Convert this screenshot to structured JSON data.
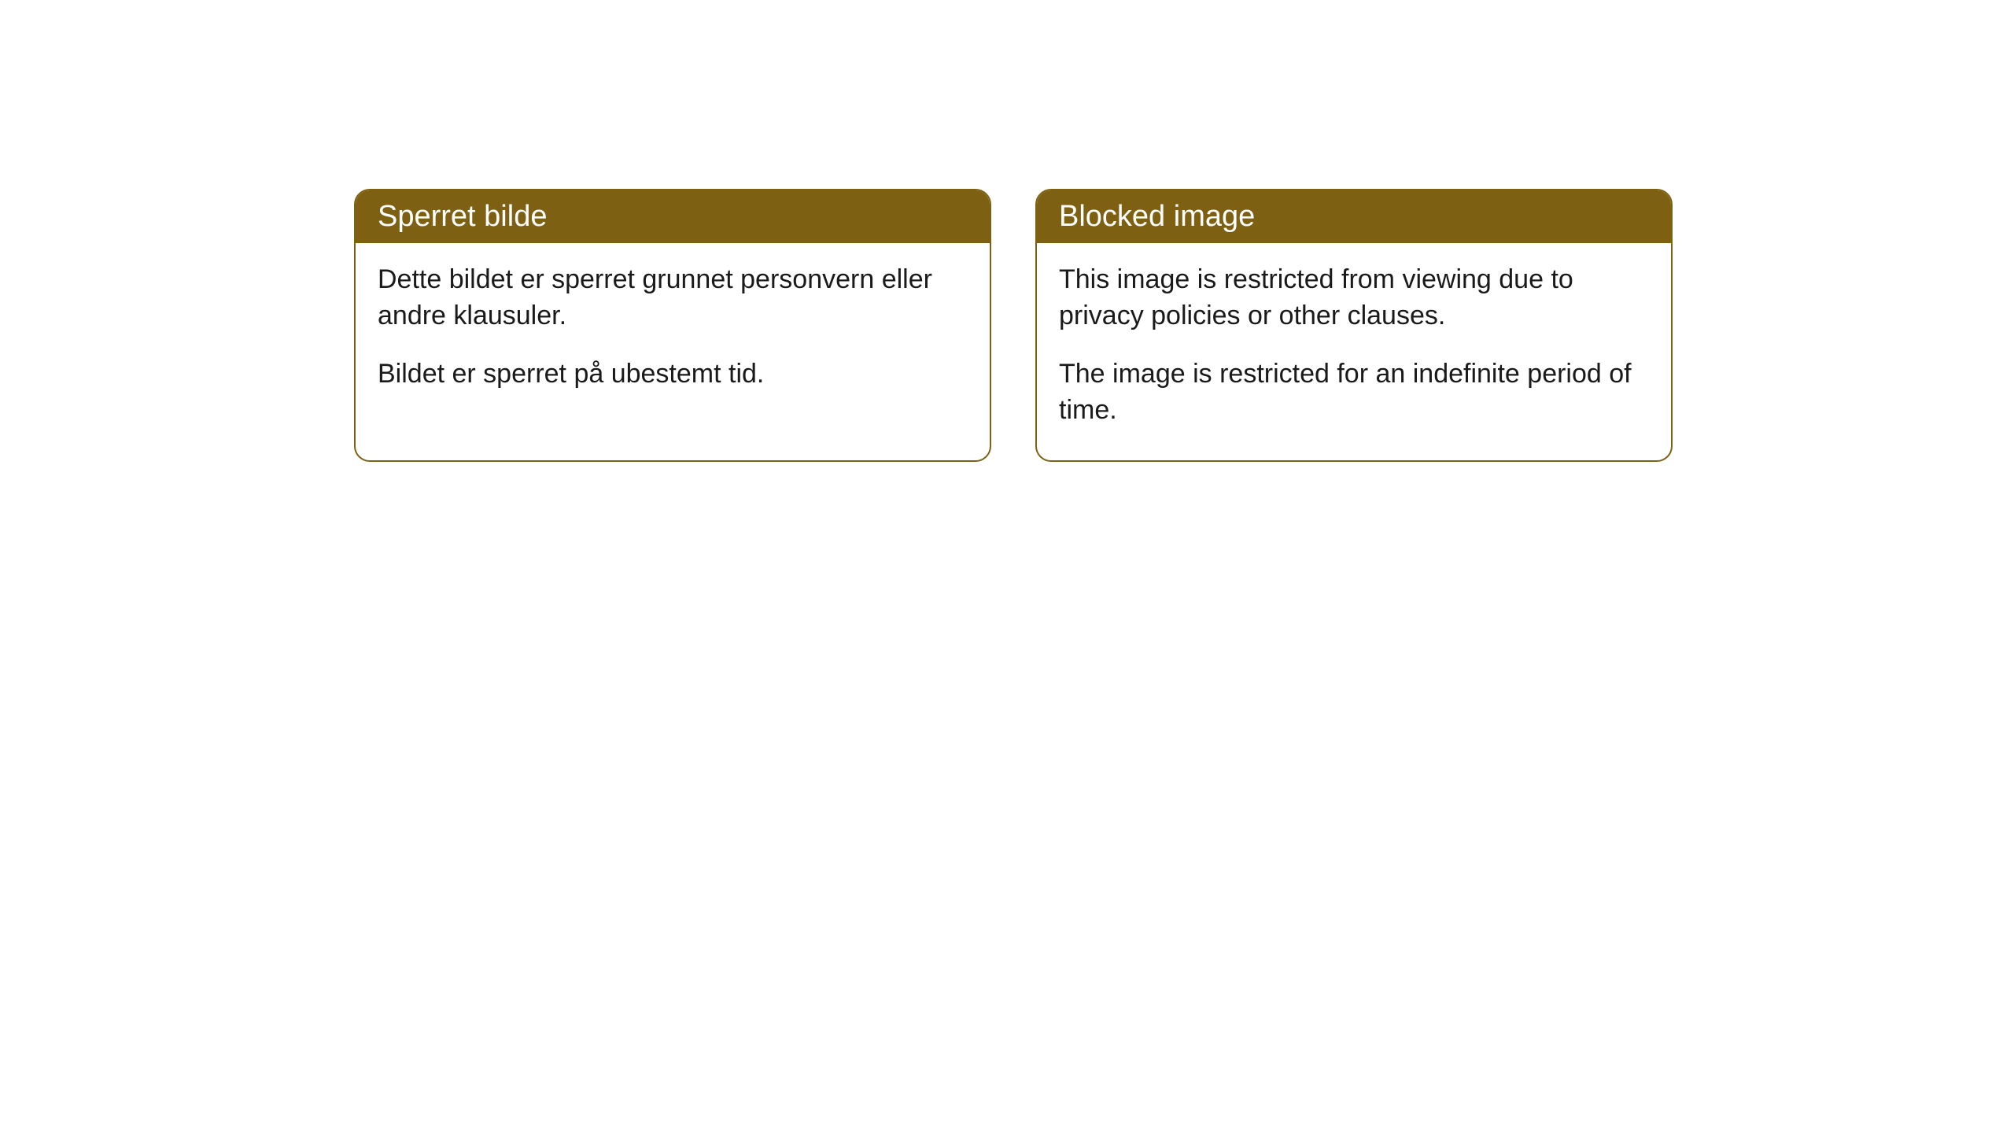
{
  "cards": [
    {
      "title": "Sperret bilde",
      "paragraph1": "Dette bildet er sperret grunnet personvern eller andre klausuler.",
      "paragraph2": "Bildet er sperret på ubestemt tid."
    },
    {
      "title": "Blocked image",
      "paragraph1": "This image is restricted from viewing due to privacy policies or other clauses.",
      "paragraph2": "The image is restricted for an indefinite period of time."
    }
  ],
  "styling": {
    "header_bg": "#7d6012",
    "header_color": "#ffffff",
    "border_color": "#7d6012",
    "body_bg": "#ffffff",
    "text_color": "#1a1a1a",
    "border_radius": 20,
    "title_fontsize": 38,
    "body_fontsize": 34
  }
}
